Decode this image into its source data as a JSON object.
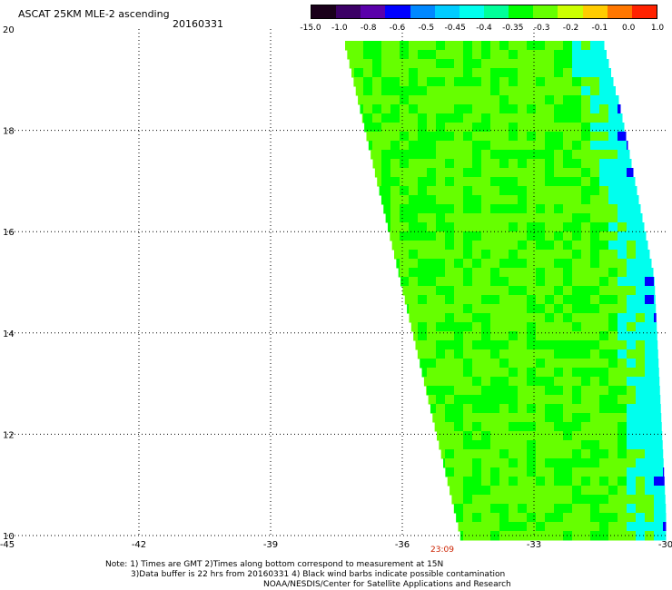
{
  "title": "ASCAT 25KM MLE-2 ascending",
  "date": "20160331",
  "colorbar": {
    "labels": [
      "-15.0",
      "-1.0",
      "-0.8",
      "-0.6",
      "-0.5",
      "-0.45",
      "-0.4",
      "-0.35",
      "-0.3",
      "-0.2",
      "-0.1",
      "0.0",
      "1.0"
    ],
    "colors": [
      "#1a001a",
      "#3c0066",
      "#5a00aa",
      "#0000ff",
      "#0088ff",
      "#00ccff",
      "#00ffee",
      "#00ff99",
      "#00ff00",
      "#66ff00",
      "#ccff00",
      "#ffcc00",
      "#ff7700",
      "#ff2200"
    ]
  },
  "axes": {
    "lon_labels": [
      "-45",
      "-42",
      "-39",
      "-36",
      "-33",
      "-30"
    ],
    "lat_labels": [
      "20",
      "18",
      "16",
      "14",
      "12",
      "10"
    ],
    "lon_range": [
      -45,
      -30
    ],
    "lat_range": [
      10,
      20
    ]
  },
  "time_label": "23:09",
  "notes": {
    "line1": "Note: 1) Times are GMT 2)Times along bottom correspond to measurement at 15N",
    "line2": "3)Data buffer is 22 hrs from 20160331 4) Black wind barbs indicate possible contamination",
    "line3": "NOAA/NESDIS/Center for Satellite Applications and Research"
  },
  "colors": {
    "swath_main": "#66ff00",
    "swath_green": "#00ff00",
    "swath_edge": "#00ffee",
    "swath_blue": "#0000ff"
  }
}
